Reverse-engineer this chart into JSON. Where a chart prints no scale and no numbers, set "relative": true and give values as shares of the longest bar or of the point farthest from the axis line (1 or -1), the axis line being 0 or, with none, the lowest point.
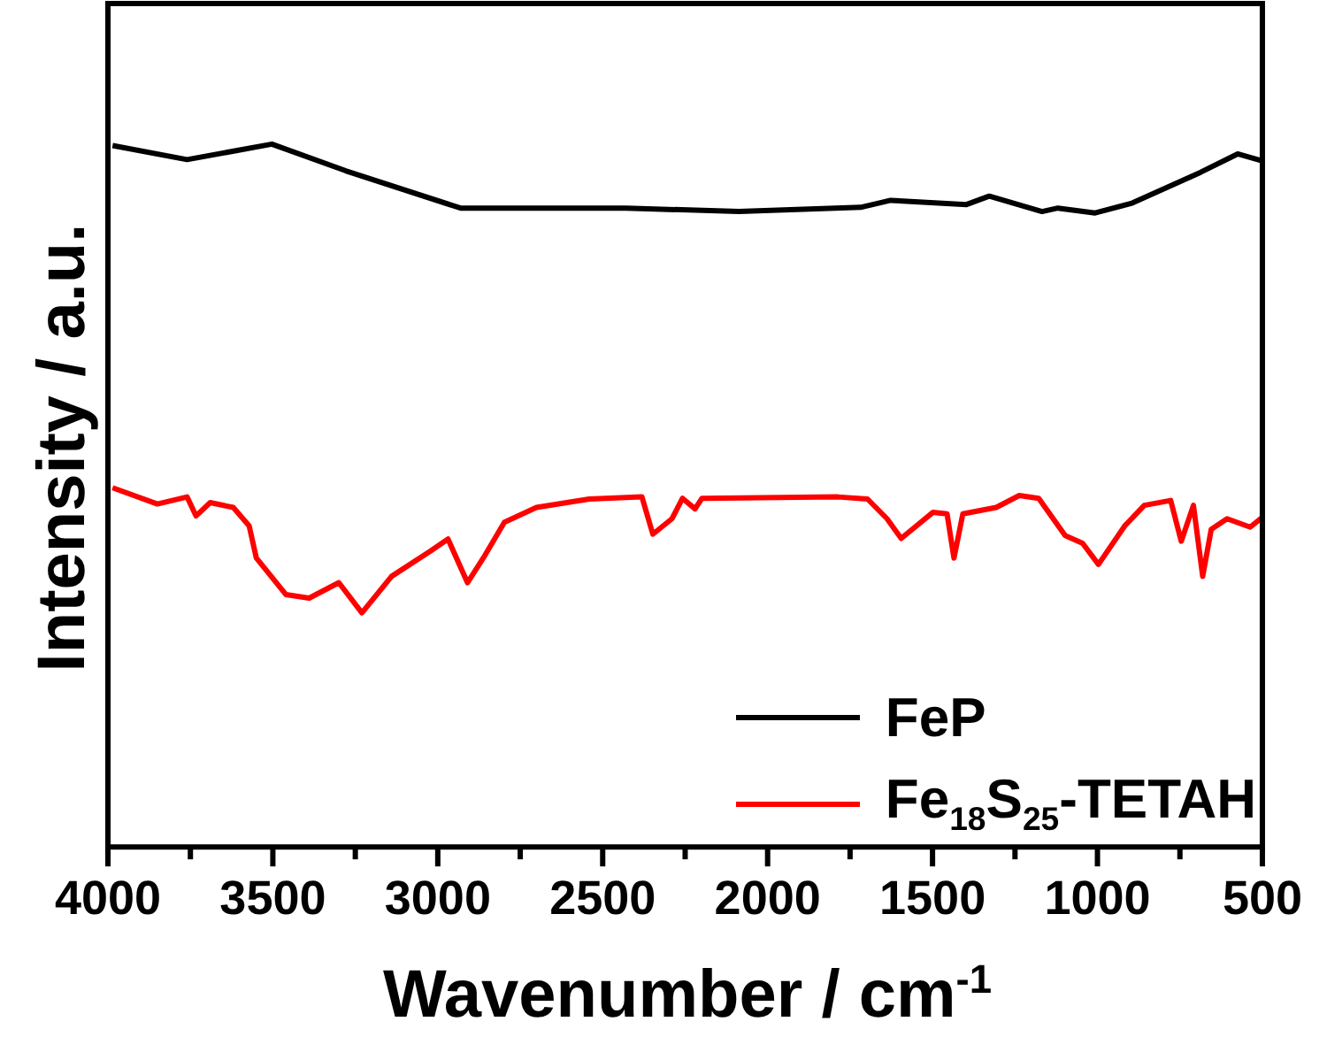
{
  "chart_data": {
    "type": "line",
    "relative": true,
    "xlabel": "Wavenumber / cm$^{-1}$",
    "ylabel": "Intensity / a.u.",
    "xlim": [
      4000,
      500
    ],
    "xticks": [
      4000,
      {
        "value": 3750,
        "label": null
      },
      3500,
      {
        "value": 3250,
        "label": null
      },
      3000,
      {
        "value": 2750,
        "label": null
      },
      2500,
      {
        "value": 2250,
        "label": null
      },
      2000,
      {
        "value": 1750,
        "label": null
      },
      1500,
      {
        "value": 1250,
        "label": null
      },
      1000,
      {
        "value": 750,
        "label": null
      },
      500
    ],
    "legend": "bottom right",
    "grid": false,
    "tick_labels": "x",
    "marker": "none",
    "line_style": "solid",
    "series": [
      {
        "name": "FeP",
        "color": "#000000",
        "x": [
          3986,
          3760,
          3503,
          3279,
          2931,
          2429,
          2087,
          1718,
          1627,
          1397,
          1328,
          1168,
          1120,
          1007,
          895,
          687,
          575,
          500
        ],
        "values": [
          0.998,
          0.978,
          1.0,
          0.962,
          0.909,
          0.909,
          0.904,
          0.91,
          0.92,
          0.914,
          0.926,
          0.904,
          0.909,
          0.902,
          0.916,
          0.96,
          0.986,
          0.976
        ]
      },
      {
        "name": "Fe$_{18}$S$_{25}$-TETAH",
        "color": "#ff0000",
        "x": [
          3986,
          3850,
          3760,
          3733,
          3690,
          3620,
          3572,
          3550,
          3460,
          3390,
          3300,
          3230,
          3140,
          3022,
          2969,
          2910,
          2862,
          2798,
          2701,
          2541,
          2381,
          2348,
          2290,
          2258,
          2220,
          2199,
          1787,
          1697,
          1638,
          1595,
          1499,
          1456,
          1435,
          1408,
          1307,
          1237,
          1178,
          1098,
          1045,
          997,
          917,
          858,
          778,
          746,
          709,
          681,
          655,
          607,
          537,
          500
        ],
        "values": [
          0.511,
          0.488,
          0.498,
          0.471,
          0.49,
          0.483,
          0.457,
          0.411,
          0.359,
          0.354,
          0.376,
          0.333,
          0.385,
          0.421,
          0.438,
          0.376,
          0.411,
          0.462,
          0.483,
          0.495,
          0.498,
          0.445,
          0.467,
          0.496,
          0.481,
          0.496,
          0.498,
          0.495,
          0.467,
          0.439,
          0.476,
          0.474,
          0.411,
          0.474,
          0.483,
          0.5,
          0.496,
          0.443,
          0.432,
          0.402,
          0.457,
          0.486,
          0.493,
          0.435,
          0.486,
          0.385,
          0.452,
          0.467,
          0.455,
          0.469
        ]
      }
    ]
  }
}
